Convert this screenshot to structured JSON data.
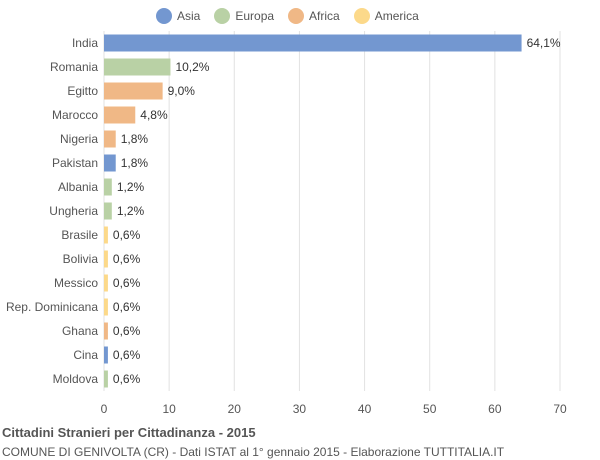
{
  "chart_data": {
    "type": "bar",
    "orientation": "horizontal",
    "title": "Cittadini Stranieri per Cittadinanza - 2015",
    "subtitle": "COMUNE DI GENIVOLTA (CR) - Dati ISTAT al 1° gennaio 2015 - Elaborazione TUTTITALIA.IT",
    "categories": [
      "India",
      "Romania",
      "Egitto",
      "Marocco",
      "Nigeria",
      "Pakistan",
      "Albania",
      "Ungheria",
      "Brasile",
      "Bolivia",
      "Messico",
      "Rep. Dominicana",
      "Ghana",
      "Cina",
      "Moldova"
    ],
    "values": [
      64.1,
      10.2,
      9.0,
      4.8,
      1.8,
      1.8,
      1.2,
      1.2,
      0.6,
      0.6,
      0.6,
      0.6,
      0.6,
      0.6,
      0.6
    ],
    "value_labels": [
      "64,1%",
      "10,2%",
      "9,0%",
      "4,8%",
      "1,8%",
      "1,8%",
      "1,2%",
      "1,2%",
      "0,6%",
      "0,6%",
      "0,6%",
      "0,6%",
      "0,6%",
      "0,6%",
      "0,6%"
    ],
    "groups": [
      "Asia",
      "Europa",
      "Africa",
      "Africa",
      "Africa",
      "Asia",
      "Europa",
      "Europa",
      "America",
      "America",
      "America",
      "America",
      "Africa",
      "Asia",
      "Europa"
    ],
    "legend": [
      {
        "name": "Asia",
        "color": "#7397d0"
      },
      {
        "name": "Europa",
        "color": "#b9d1a5"
      },
      {
        "name": "Africa",
        "color": "#f0b886"
      },
      {
        "name": "America",
        "color": "#fcd98a"
      }
    ],
    "legend_position": "top",
    "xlim": [
      0,
      70
    ],
    "xticks": [
      "0",
      "10",
      "20",
      "30",
      "40",
      "50",
      "60",
      "70"
    ],
    "grid": true
  }
}
